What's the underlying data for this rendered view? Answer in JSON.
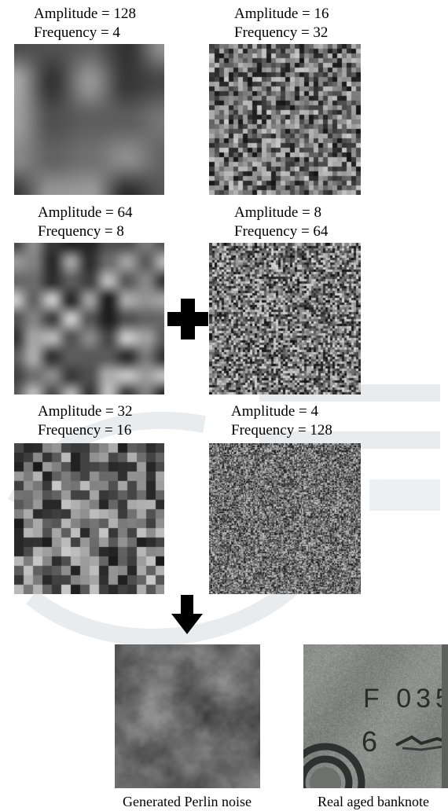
{
  "tiles": [
    {
      "amplitude_line": "Amplitude = 128",
      "frequency_line": "Frequency = 4",
      "amplitude": 128,
      "frequency": 4
    },
    {
      "amplitude_line": "Amplitude = 16",
      "frequency_line": "Frequency = 32",
      "amplitude": 16,
      "frequency": 32
    },
    {
      "amplitude_line": "Amplitude = 64",
      "frequency_line": "Frequency = 8",
      "amplitude": 64,
      "frequency": 8
    },
    {
      "amplitude_line": "Amplitude = 8",
      "frequency_line": "Frequency = 64",
      "amplitude": 8,
      "frequency": 64
    },
    {
      "amplitude_line": "Amplitude = 32",
      "frequency_line": "Frequency = 16",
      "amplitude": 32,
      "frequency": 16
    },
    {
      "amplitude_line": "Amplitude = 4",
      "frequency_line": "Frequency = 128",
      "amplitude": 4,
      "frequency": 128
    }
  ],
  "results": {
    "generated_caption": "Generated Perlin noise",
    "real_caption": "Real aged banknote",
    "banknote_text_line1": "F 035",
    "banknote_text_line2": "6"
  }
}
